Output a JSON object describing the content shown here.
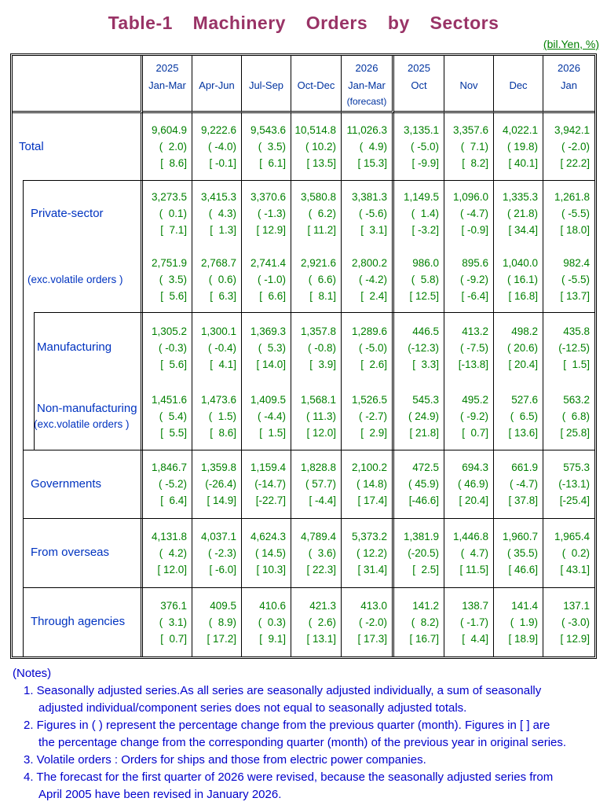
{
  "title": "Table-1  Machinery  Orders  by  Sectors",
  "unit_label": "(bil.Yen, %)",
  "table": {
    "columns": [
      {
        "year": "2025",
        "period": "Jan-Mar",
        "sub": ""
      },
      {
        "year": "",
        "period": "Apr-Jun",
        "sub": ""
      },
      {
        "year": "",
        "period": "Jul-Sep",
        "sub": ""
      },
      {
        "year": "",
        "period": "Oct-Dec",
        "sub": ""
      },
      {
        "year": "2026",
        "period": "Jan-Mar",
        "sub": "(forecast)"
      },
      {
        "year": "2025",
        "period": "Oct",
        "sub": ""
      },
      {
        "year": "",
        "period": "Nov",
        "sub": ""
      },
      {
        "year": "",
        "period": "Dec",
        "sub": ""
      },
      {
        "year": "2026",
        "period": "Jan",
        "sub": ""
      }
    ],
    "value_format": {
      "line1": "value",
      "line2": "(change from previous quarter/month %)",
      "line3": "[change from previous year %]"
    },
    "rows": [
      {
        "label": "Total",
        "label2": "",
        "indent": 0,
        "cells": [
          [
            "9,604.9",
            "2.0",
            "8.6"
          ],
          [
            "9,222.6",
            "-4.0",
            "-0.1"
          ],
          [
            "9,543.6",
            "3.5",
            "6.1"
          ],
          [
            "10,514.8",
            "10.2",
            "13.5"
          ],
          [
            "11,026.3",
            "4.9",
            "15.3"
          ],
          [
            "3,135.1",
            "-5.0",
            "-9.9"
          ],
          [
            "3,357.6",
            "7.1",
            "8.2"
          ],
          [
            "4,022.1",
            "19.8",
            "40.1"
          ],
          [
            "3,942.1",
            "-2.0",
            "22.2"
          ]
        ]
      },
      {
        "label": "Private-sector",
        "label2": "",
        "indent": 1,
        "cells": [
          [
            "3,273.5",
            "0.1",
            "7.1"
          ],
          [
            "3,415.3",
            "4.3",
            "1.3"
          ],
          [
            "3,370.6",
            "-1.3",
            "12.9"
          ],
          [
            "3,580.8",
            "6.2",
            "11.2"
          ],
          [
            "3,381.3",
            "-5.6",
            "3.1"
          ],
          [
            "1,149.5",
            "1.4",
            "-3.2"
          ],
          [
            "1,096.0",
            "-4.7",
            "-0.9"
          ],
          [
            "1,335.3",
            "21.8",
            "34.4"
          ],
          [
            "1,261.8",
            "-5.5",
            "18.0"
          ]
        ]
      },
      {
        "label": "(exc.volatile orders )",
        "label2": "",
        "indent": 1,
        "cells": [
          [
            "2,751.9",
            "3.5",
            "5.6"
          ],
          [
            "2,768.7",
            "0.6",
            "6.3"
          ],
          [
            "2,741.4",
            "-1.0",
            "6.6"
          ],
          [
            "2,921.6",
            "6.6",
            "8.1"
          ],
          [
            "2,800.2",
            "-4.2",
            "2.4"
          ],
          [
            "986.0",
            "5.8",
            "12.5"
          ],
          [
            "895.6",
            "-9.2",
            "-6.4"
          ],
          [
            "1,040.0",
            "16.1",
            "16.8"
          ],
          [
            "982.4",
            "-5.5",
            "13.7"
          ]
        ]
      },
      {
        "label": "Manufacturing",
        "label2": "",
        "indent": 2,
        "cells": [
          [
            "1,305.2",
            "-0.3",
            "5.6"
          ],
          [
            "1,300.1",
            "-0.4",
            "4.1"
          ],
          [
            "1,369.3",
            "5.3",
            "14.0"
          ],
          [
            "1,357.8",
            "-0.8",
            "3.9"
          ],
          [
            "1,289.6",
            "-5.0",
            "2.6"
          ],
          [
            "446.5",
            "-12.3",
            "3.3"
          ],
          [
            "413.2",
            "-7.5",
            "-13.8"
          ],
          [
            "498.2",
            "20.6",
            "20.4"
          ],
          [
            "435.8",
            "-12.5",
            "1.5"
          ]
        ]
      },
      {
        "label": "Non-manufacturing",
        "label2": "(exc.volatile orders )",
        "indent": 2,
        "cells": [
          [
            "1,451.6",
            "5.4",
            "5.5"
          ],
          [
            "1,473.6",
            "1.5",
            "8.6"
          ],
          [
            "1,409.5",
            "-4.4",
            "1.5"
          ],
          [
            "1,568.1",
            "11.3",
            "12.0"
          ],
          [
            "1,526.5",
            "-2.7",
            "2.9"
          ],
          [
            "545.3",
            "24.9",
            "21.8"
          ],
          [
            "495.2",
            "-9.2",
            "0.7"
          ],
          [
            "527.6",
            "6.5",
            "13.6"
          ],
          [
            "563.2",
            "6.8",
            "25.8"
          ]
        ]
      },
      {
        "label": "Governments",
        "label2": "",
        "indent": 1,
        "cells": [
          [
            "1,846.7",
            "-5.2",
            "6.4"
          ],
          [
            "1,359.8",
            "-26.4",
            "14.9"
          ],
          [
            "1,159.4",
            "-14.7",
            "-22.7"
          ],
          [
            "1,828.8",
            "57.7",
            "-4.4"
          ],
          [
            "2,100.2",
            "14.8",
            "17.4"
          ],
          [
            "472.5",
            "45.9",
            "-46.6"
          ],
          [
            "694.3",
            "46.9",
            "20.4"
          ],
          [
            "661.9",
            "-4.7",
            "37.8"
          ],
          [
            "575.3",
            "-13.1",
            "-25.4"
          ]
        ]
      },
      {
        "label": "From overseas",
        "label2": "",
        "indent": 1,
        "cells": [
          [
            "4,131.8",
            "4.2",
            "12.0"
          ],
          [
            "4,037.1",
            "-2.3",
            "-6.0"
          ],
          [
            "4,624.3",
            "14.5",
            "10.3"
          ],
          [
            "4,789.4",
            "3.6",
            "22.3"
          ],
          [
            "5,373.2",
            "12.2",
            "31.4"
          ],
          [
            "1,381.9",
            "-20.5",
            "2.5"
          ],
          [
            "1,446.8",
            "4.7",
            "11.5"
          ],
          [
            "1,960.7",
            "35.5",
            "46.6"
          ],
          [
            "1,965.4",
            "0.2",
            "43.1"
          ]
        ]
      },
      {
        "label": "Through agencies",
        "label2": "",
        "indent": 1,
        "cells": [
          [
            "376.1",
            "3.1",
            "0.7"
          ],
          [
            "409.5",
            "8.9",
            "17.2"
          ],
          [
            "410.6",
            "0.3",
            "9.1"
          ],
          [
            "421.3",
            "2.6",
            "13.1"
          ],
          [
            "413.0",
            "-2.0",
            "17.3"
          ],
          [
            "141.2",
            "8.2",
            "16.7"
          ],
          [
            "138.7",
            "-1.7",
            "4.4"
          ],
          [
            "141.4",
            "1.9",
            "18.9"
          ],
          [
            "137.1",
            "-3.0",
            "12.9"
          ]
        ]
      }
    ]
  },
  "notes": {
    "heading": "(Notes)",
    "items": [
      {
        "lines": [
          "1. Seasonally adjusted series.As all series are seasonally adjusted individually, a sum of seasonally",
          "adjusted individual/component series does not equal to seasonally adjusted totals."
        ]
      },
      {
        "lines": [
          "2. Figures in ( ) represent the percentage change from the previous quarter (month). Figures in [ ] are",
          "the percentage change from the corresponding quarter (month) of the previous year in original series."
        ]
      },
      {
        "lines": [
          "3. Volatile orders : Orders for ships and those from electric power companies."
        ]
      },
      {
        "lines": [
          "4. The forecast for the first quarter of 2026 were revised, because the seasonally adjusted series from",
          "April 2005 have been revised in January 2026."
        ]
      }
    ]
  },
  "colors": {
    "title": "#993366",
    "unit": "#008000",
    "header_text": "#0033A0",
    "row_label": "#0033C0",
    "data_value": "#008000",
    "notes_text": "#0000CC",
    "border": "#000000"
  }
}
